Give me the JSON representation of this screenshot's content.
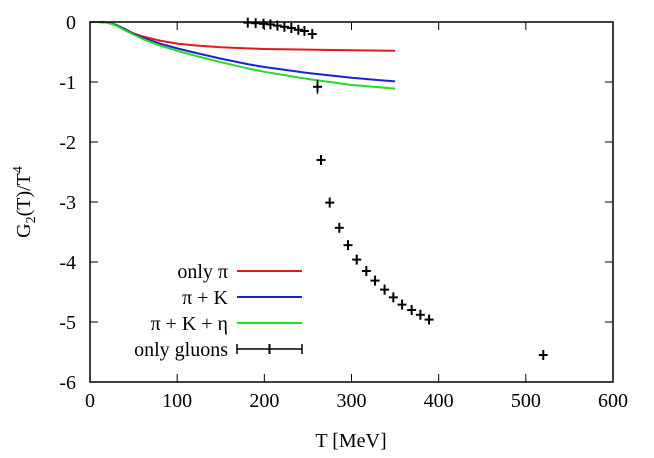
{
  "chart_data": {
    "type": "line",
    "xlabel": "T [MeV]",
    "ylabel_parts": {
      "base1": "G",
      "sub1": "2",
      "mid": "(T)/T",
      "sup1": "4"
    },
    "xlim": [
      0,
      600
    ],
    "ylim": [
      -6,
      0
    ],
    "xticks": [
      0,
      100,
      200,
      300,
      400,
      500,
      600
    ],
    "yticks": [
      0,
      -1,
      -2,
      -3,
      -4,
      -5,
      -6
    ],
    "grid": false,
    "legend_position": "bottom-left",
    "series": [
      {
        "name": "only π",
        "color": "#e31a1c",
        "x": [
          0,
          10,
          20,
          30,
          40,
          50,
          60,
          80,
          100,
          120,
          150,
          180,
          200,
          250,
          300,
          350
        ],
        "y": [
          0,
          0,
          -0.01,
          -0.05,
          -0.12,
          -0.19,
          -0.24,
          -0.31,
          -0.36,
          -0.39,
          -0.42,
          -0.44,
          -0.45,
          -0.46,
          -0.47,
          -0.48
        ]
      },
      {
        "name": "π + K",
        "color": "#1f1fd6",
        "x": [
          0,
          10,
          20,
          30,
          40,
          50,
          60,
          80,
          100,
          120,
          150,
          180,
          200,
          250,
          300,
          350
        ],
        "y": [
          0,
          0,
          -0.01,
          -0.05,
          -0.12,
          -0.2,
          -0.26,
          -0.36,
          -0.44,
          -0.51,
          -0.61,
          -0.7,
          -0.75,
          -0.85,
          -0.93,
          -0.99
        ]
      },
      {
        "name": "π + K + η",
        "color": "#22dd22",
        "x": [
          0,
          10,
          20,
          30,
          40,
          50,
          60,
          80,
          100,
          120,
          150,
          180,
          200,
          250,
          300,
          350
        ],
        "y": [
          0,
          0,
          -0.01,
          -0.06,
          -0.14,
          -0.21,
          -0.28,
          -0.39,
          -0.48,
          -0.56,
          -0.67,
          -0.77,
          -0.83,
          -0.95,
          -1.05,
          -1.11
        ]
      },
      {
        "name": "only gluons",
        "color": "#000000",
        "style": "points-errorbars",
        "x": [
          181,
          190,
          199,
          207,
          215,
          223,
          231,
          239,
          246,
          255,
          261,
          265,
          275,
          286,
          296,
          306,
          317,
          327,
          338,
          348,
          358,
          369,
          379,
          389,
          520
        ],
        "y": [
          -0.01,
          -0.02,
          -0.03,
          -0.04,
          -0.06,
          -0.08,
          -0.1,
          -0.13,
          -0.15,
          -0.2,
          -1.08,
          -2.3,
          -3.01,
          -3.43,
          -3.72,
          -3.96,
          -4.15,
          -4.31,
          -4.46,
          -4.59,
          -4.71,
          -4.8,
          -4.88,
          -4.96,
          -5.55
        ]
      }
    ]
  }
}
